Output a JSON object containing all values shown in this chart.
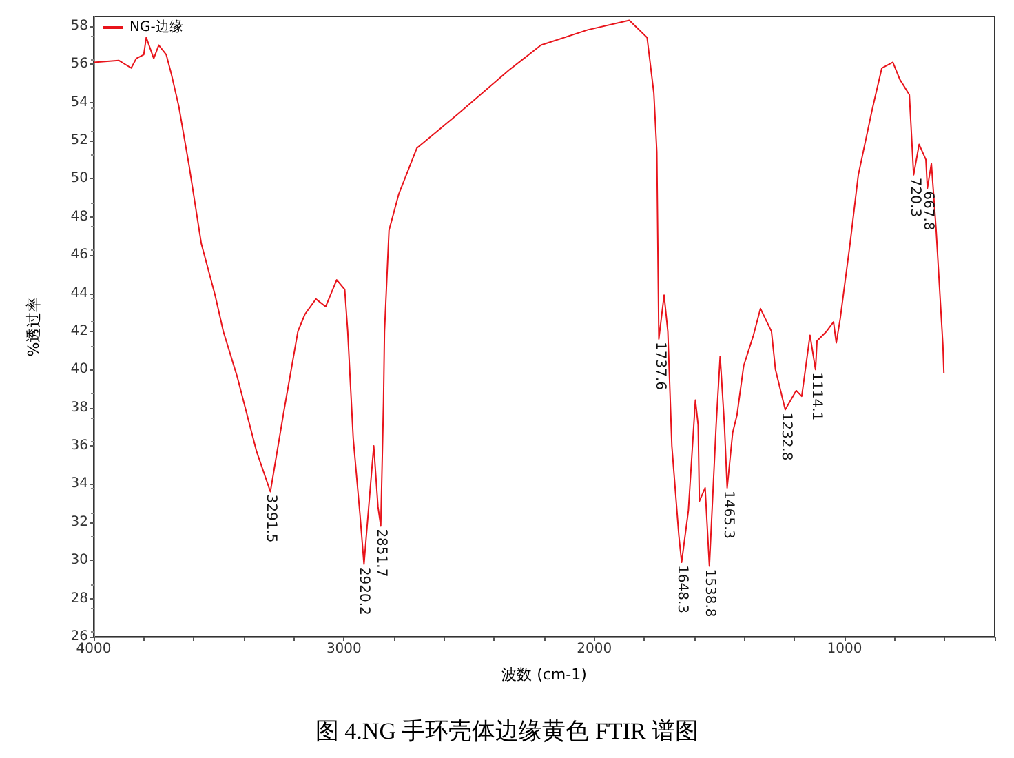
{
  "chart_data": {
    "type": "line",
    "title": "图 4.NG 手环壳体边缘黄色 FTIR 谱图",
    "xlabel": "波数 (cm-1)",
    "ylabel": "%透过率",
    "legend": "top left",
    "grid": false,
    "marker": "none",
    "line_style": "solid",
    "xlim": [
      4000,
      400
    ],
    "ylim": [
      26,
      58.5
    ],
    "xticks": [
      4000,
      {
        "value": 3800,
        "label": null
      },
      {
        "value": 3600,
        "label": null
      },
      {
        "value": 3400,
        "label": null
      },
      {
        "value": 3200,
        "label": null
      },
      3000,
      {
        "value": 2800,
        "label": null
      },
      {
        "value": 2600,
        "label": null
      },
      {
        "value": 2400,
        "label": null
      },
      {
        "value": 2200,
        "label": null
      },
      2000,
      {
        "value": 1800,
        "label": null
      },
      {
        "value": 1600,
        "label": null
      },
      {
        "value": 1400,
        "label": null
      },
      {
        "value": 1200,
        "label": null
      },
      1000,
      {
        "value": 800,
        "label": null
      },
      {
        "value": 600,
        "label": null
      },
      {
        "value": 400,
        "label": null
      }
    ],
    "yticks": [
      26,
      28,
      30,
      32,
      34,
      36,
      38,
      40,
      42,
      44,
      46,
      48,
      50,
      52,
      54,
      56,
      58
    ],
    "series": [
      {
        "name": "NG-边缘",
        "color": "#e8141b",
        "x": [
          4000,
          3900,
          3850,
          3830,
          3800,
          3790,
          3760,
          3740,
          3710,
          3690,
          3660,
          3619,
          3570,
          3515,
          3482,
          3426,
          3349,
          3294,
          3239,
          3184,
          3156,
          3112,
          3073,
          3029,
          2997,
          2985,
          2963,
          2936,
          2920,
          2881,
          2864,
          2853,
          2842,
          2838,
          2820,
          2781,
          2709,
          2544,
          2340,
          2213,
          2026,
          1860,
          1789,
          1762,
          1750,
          1742,
          1721,
          1706,
          1690,
          1662,
          1651,
          1624,
          1596,
          1585,
          1580,
          1557,
          1540,
          1513,
          1497,
          1480,
          1469,
          1447,
          1430,
          1403,
          1364,
          1336,
          1292,
          1276,
          1237,
          1193,
          1171,
          1138,
          1116,
          1110,
          1072,
          1044,
          1033,
          1017,
          978,
          945,
          890,
          851,
          807,
          779,
          741,
          724,
          702,
          675,
          669,
          653,
          634,
          607,
          603
        ],
        "values": [
          56.1,
          56.2,
          55.8,
          56.3,
          56.5,
          57.4,
          56.3,
          57.0,
          56.5,
          55.5,
          53.8,
          50.7,
          46.6,
          43.9,
          42.0,
          39.6,
          35.7,
          33.6,
          37.9,
          42.0,
          42.9,
          43.7,
          43.3,
          44.7,
          44.2,
          42.0,
          36.4,
          32.4,
          29.8,
          36.0,
          32.8,
          31.8,
          38.3,
          42.0,
          47.3,
          49.2,
          51.6,
          53.4,
          55.7,
          57.0,
          57.8,
          58.3,
          57.4,
          54.5,
          51.4,
          41.6,
          43.9,
          42.0,
          36.0,
          31.3,
          29.9,
          32.6,
          38.4,
          37.1,
          33.1,
          33.8,
          29.7,
          37.1,
          40.7,
          37.1,
          33.8,
          36.7,
          37.6,
          40.2,
          41.8,
          43.2,
          42.0,
          40.0,
          37.9,
          38.9,
          38.6,
          41.8,
          40.0,
          41.5,
          42.0,
          42.5,
          41.4,
          42.7,
          46.6,
          50.2,
          53.6,
          55.8,
          56.1,
          55.2,
          54.4,
          50.2,
          51.8,
          51.0,
          49.5,
          50.8,
          47.3,
          41.3,
          39.8
        ]
      }
    ],
    "annotations": [
      {
        "text": "3291.5",
        "x": 3291.5,
        "y": 33.6
      },
      {
        "text": "2920.2",
        "x": 2920.2,
        "y": 29.8
      },
      {
        "text": "2851.7",
        "x": 2851.7,
        "y": 31.8
      },
      {
        "text": "1737.6",
        "x": 1737.6,
        "y": 41.6
      },
      {
        "text": "1648.3",
        "x": 1648.3,
        "y": 29.9
      },
      {
        "text": "1538.8",
        "x": 1538.8,
        "y": 29.7
      },
      {
        "text": "1465.3",
        "x": 1465.3,
        "y": 33.8
      },
      {
        "text": "1232.8",
        "x": 1232.8,
        "y": 37.9
      },
      {
        "text": "1114.1",
        "x": 1114.1,
        "y": 40.0
      },
      {
        "text": "720.3",
        "x": 720.3,
        "y": 50.2
      },
      {
        "text": "667.8",
        "x": 667.8,
        "y": 49.5
      }
    ]
  }
}
